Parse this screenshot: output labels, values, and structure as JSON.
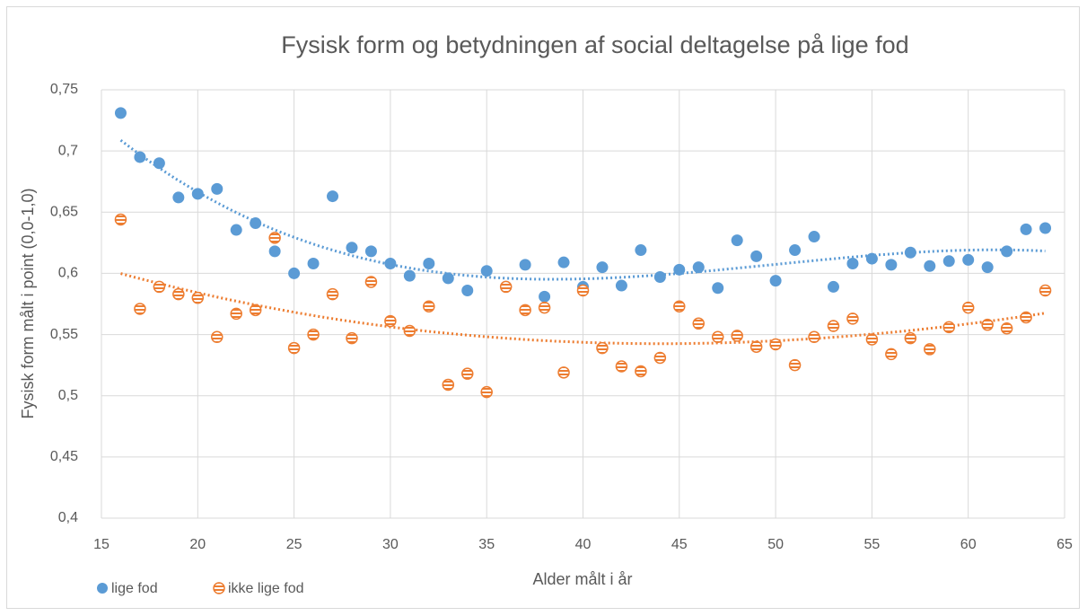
{
  "chart_data": {
    "type": "scatter",
    "title": "Fysisk form og betydningen af social deltagelse på lige fod",
    "x_label": "Alder målt i år",
    "y_label": "Fysisk form målt i point (0,0-1,0)",
    "xlim": [
      15,
      65
    ],
    "xticks": [
      15,
      20,
      25,
      30,
      35,
      40,
      45,
      50,
      55,
      60,
      65
    ],
    "ylim": [
      0.4,
      0.75
    ],
    "yticks": [
      {
        "value": 0.4,
        "label": "0,4"
      },
      {
        "value": 0.45,
        "label": "0,45"
      },
      {
        "value": 0.5,
        "label": "0,5"
      },
      {
        "value": 0.55,
        "label": "0,55"
      },
      {
        "value": 0.6,
        "label": "0,6"
      },
      {
        "value": 0.65,
        "label": "0,65"
      },
      {
        "value": 0.7,
        "label": "0,7"
      },
      {
        "value": 0.75,
        "label": "0,75"
      }
    ],
    "grid": true,
    "legend": "bottom-left",
    "x": [
      16,
      17,
      18,
      19,
      20,
      21,
      22,
      23,
      24,
      25,
      26,
      27,
      28,
      29,
      30,
      31,
      32,
      33,
      34,
      35,
      36,
      37,
      38,
      39,
      40,
      41,
      42,
      43,
      44,
      45,
      46,
      47,
      48,
      49,
      50,
      51,
      52,
      53,
      54,
      55,
      56,
      57,
      58,
      59,
      60,
      61,
      62,
      63,
      64
    ],
    "series": [
      {
        "name": "lige fod",
        "color": "#5b9bd5",
        "trendline": "polynomial",
        "values": [
          0.731,
          0.695,
          0.69,
          0.662,
          0.665,
          0.669,
          0.6355,
          0.641,
          0.618,
          0.6,
          0.608,
          0.663,
          0.621,
          0.618,
          0.608,
          0.598,
          0.608,
          0.596,
          0.586,
          0.602,
          0.589,
          0.607,
          0.581,
          0.609,
          0.589,
          0.605,
          0.59,
          0.619,
          0.597,
          0.603,
          0.605,
          0.588,
          0.627,
          0.614,
          0.594,
          0.619,
          0.63,
          0.589,
          0.608,
          0.612,
          0.607,
          0.617,
          0.606,
          0.61,
          0.611,
          0.605,
          0.618,
          0.636,
          0.637
        ]
      },
      {
        "name": "ikke lige fod",
        "color": "#ed7d31",
        "trendline": "polynomial",
        "values": [
          0.644,
          0.571,
          0.589,
          0.583,
          0.58,
          0.548,
          0.567,
          0.57,
          0.629,
          0.539,
          0.55,
          0.583,
          0.547,
          0.593,
          0.561,
          0.553,
          0.573,
          0.509,
          0.518,
          0.503,
          0.589,
          0.57,
          0.572,
          0.519,
          0.586,
          0.539,
          0.524,
          0.52,
          0.531,
          0.573,
          0.559,
          0.548,
          0.549,
          0.54,
          0.542,
          0.525,
          0.548,
          0.557,
          0.563,
          0.546,
          0.534,
          0.547,
          0.538,
          0.556,
          0.572,
          0.558,
          0.555,
          0.564,
          0.586
        ]
      }
    ]
  }
}
